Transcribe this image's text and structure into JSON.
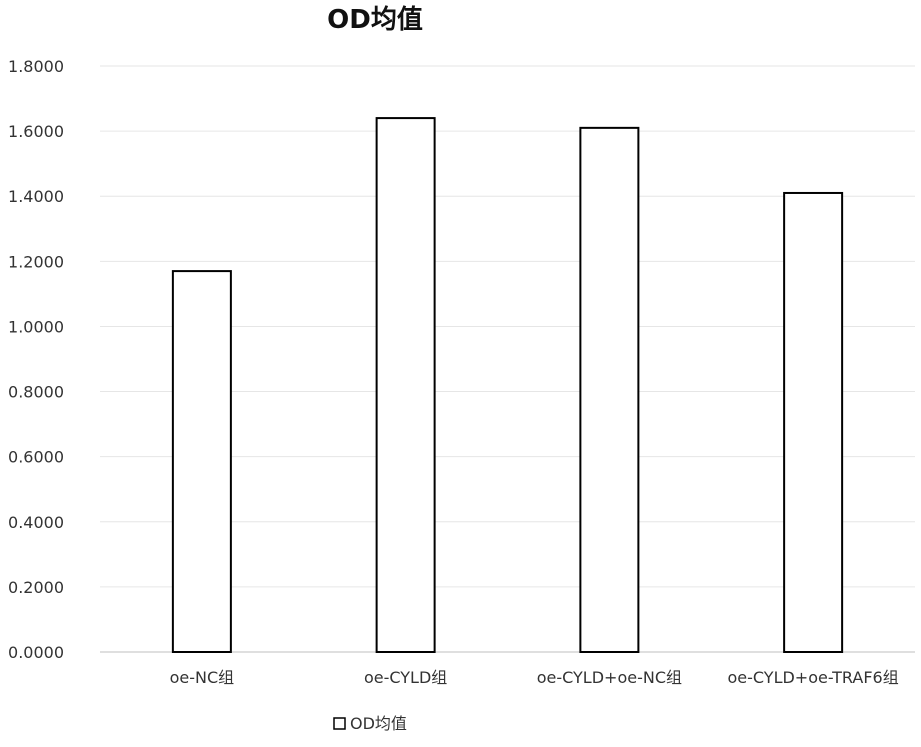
{
  "chart_data": {
    "type": "bar",
    "title": "OD均值",
    "categories": [
      "oe-NC组",
      "oe-CYLD组",
      "oe-CYLD+oe-NC组",
      "oe-CYLD+oe-TRAF6组"
    ],
    "series": [
      {
        "name": "OD均值",
        "values": [
          1.17,
          1.64,
          1.61,
          1.41
        ]
      }
    ],
    "yticks": [
      "0.0000",
      "0.2000",
      "0.4000",
      "0.6000",
      "0.8000",
      "1.0000",
      "1.2000",
      "1.4000",
      "1.6000",
      "1.8000"
    ],
    "ylim": [
      0,
      1.8
    ],
    "grid": true,
    "legend_position": "bottom",
    "colors": {
      "bar_fill": "#ffffff",
      "bar_stroke": "#000000",
      "grid": "#e6e6e6",
      "axis": "#bfbfbf"
    }
  }
}
